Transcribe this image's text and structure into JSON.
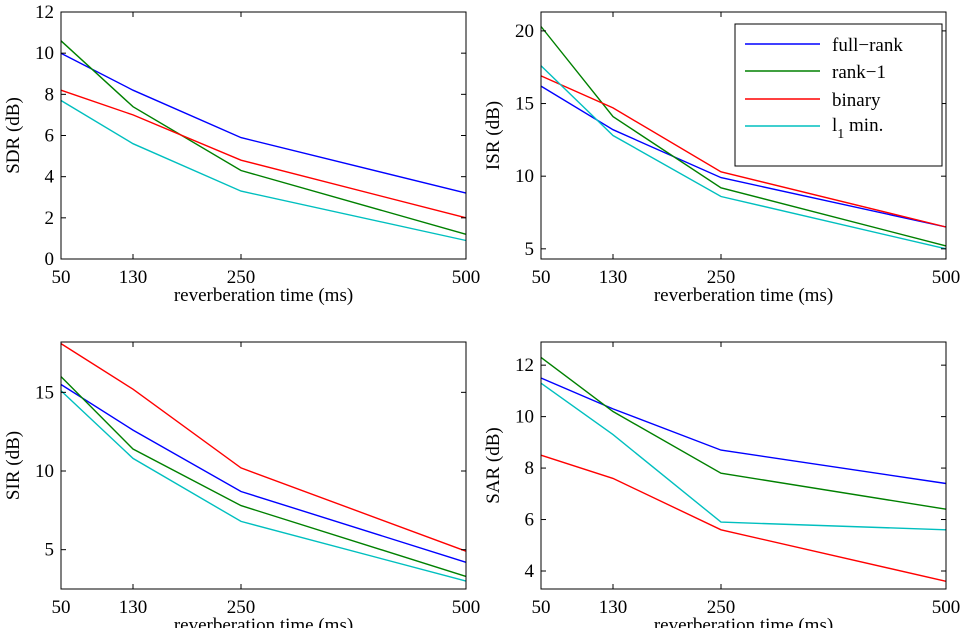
{
  "legend": {
    "entries": [
      {
        "label": "full−rank",
        "color": "#0000ff"
      },
      {
        "label": "rank−1",
        "color": "#008000"
      },
      {
        "label": "binary",
        "color": "#ff0000"
      },
      {
        "label_main": "l",
        "label_sub": "1",
        "label_rest": " min.",
        "color": "#00bfbf"
      }
    ],
    "placement": "top-right of ISR panel"
  },
  "chart_data": [
    {
      "type": "line",
      "ylabel": "SDR (dB)",
      "xlabel": "reverberation time (ms)",
      "x": [
        50,
        130,
        250,
        500
      ],
      "xticks": [
        "50",
        "130",
        "250",
        "500"
      ],
      "xlim": [
        50,
        500
      ],
      "ylim": [
        0,
        12
      ],
      "yticks": [
        0,
        2,
        4,
        6,
        8,
        10,
        12
      ],
      "grid": false,
      "series": [
        {
          "name": "full−rank",
          "color": "#0000ff",
          "values": [
            10.0,
            8.2,
            5.9,
            3.2
          ]
        },
        {
          "name": "rank−1",
          "color": "#008000",
          "values": [
            10.6,
            7.4,
            4.3,
            1.2
          ]
        },
        {
          "name": "binary",
          "color": "#ff0000",
          "values": [
            8.2,
            7.0,
            4.8,
            2.0
          ]
        },
        {
          "name": "l1 min.",
          "color": "#00bfbf",
          "values": [
            7.7,
            5.6,
            3.3,
            0.9
          ]
        }
      ]
    },
    {
      "type": "line",
      "ylabel": "ISR (dB)",
      "xlabel": "reverberation time (ms)",
      "x": [
        50,
        130,
        250,
        500
      ],
      "xticks": [
        "50",
        "130",
        "250",
        "500"
      ],
      "xlim": [
        50,
        500
      ],
      "ylim": [
        4.3,
        21.3
      ],
      "yticks": [
        5,
        10,
        15,
        20
      ],
      "grid": false,
      "series": [
        {
          "name": "full−rank",
          "color": "#0000ff",
          "values": [
            16.2,
            13.2,
            9.9,
            6.5
          ]
        },
        {
          "name": "rank−1",
          "color": "#008000",
          "values": [
            20.3,
            14.1,
            9.2,
            5.2
          ]
        },
        {
          "name": "binary",
          "color": "#ff0000",
          "values": [
            16.9,
            14.7,
            10.3,
            6.5
          ]
        },
        {
          "name": "l1 min.",
          "color": "#00bfbf",
          "values": [
            17.6,
            12.8,
            8.6,
            5.0
          ]
        }
      ]
    },
    {
      "type": "line",
      "ylabel": "SIR (dB)",
      "xlabel": "reverberation time (ms)",
      "x": [
        50,
        130,
        250,
        500
      ],
      "xticks": [
        "50",
        "130",
        "250",
        "500"
      ],
      "xlim": [
        50,
        500
      ],
      "ylim": [
        2.5,
        18.2
      ],
      "yticks": [
        5,
        10,
        15
      ],
      "grid": false,
      "series": [
        {
          "name": "full−rank",
          "color": "#0000ff",
          "values": [
            15.5,
            12.6,
            8.7,
            4.2
          ]
        },
        {
          "name": "rank−1",
          "color": "#008000",
          "values": [
            16.0,
            11.4,
            7.8,
            3.3
          ]
        },
        {
          "name": "binary",
          "color": "#ff0000",
          "values": [
            18.1,
            15.2,
            10.2,
            4.9
          ]
        },
        {
          "name": "l1 min.",
          "color": "#00bfbf",
          "values": [
            15.1,
            10.8,
            6.8,
            3.0
          ]
        }
      ]
    },
    {
      "type": "line",
      "ylabel": "SAR (dB)",
      "xlabel": "reverberation time (ms)",
      "x": [
        50,
        130,
        250,
        500
      ],
      "xticks": [
        "50",
        "130",
        "250",
        "500"
      ],
      "xlim": [
        50,
        500
      ],
      "ylim": [
        3.3,
        12.9
      ],
      "yticks": [
        4,
        6,
        8,
        10,
        12
      ],
      "grid": false,
      "series": [
        {
          "name": "full−rank",
          "color": "#0000ff",
          "values": [
            11.5,
            10.3,
            8.7,
            7.4
          ]
        },
        {
          "name": "rank−1",
          "color": "#008000",
          "values": [
            12.3,
            10.2,
            7.8,
            6.4
          ]
        },
        {
          "name": "binary",
          "color": "#ff0000",
          "values": [
            8.5,
            7.6,
            5.6,
            3.6
          ]
        },
        {
          "name": "l1 min.",
          "color": "#00bfbf",
          "values": [
            11.3,
            9.3,
            5.9,
            5.6
          ]
        }
      ]
    }
  ]
}
